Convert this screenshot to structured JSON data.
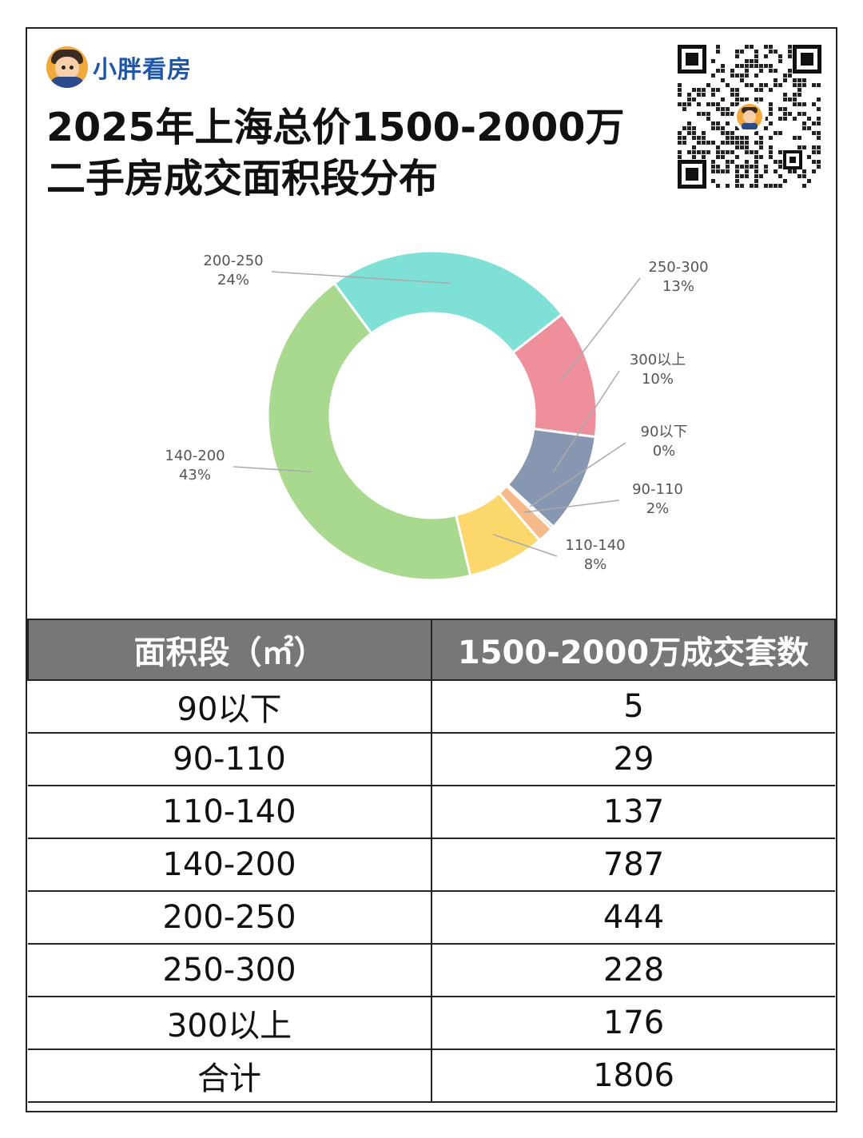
{
  "brand": {
    "name": "小胖看房"
  },
  "title": {
    "line1": "2025年上海总价1500-2000万",
    "line2": "二手房成交面积段分布"
  },
  "chart_data": {
    "type": "pie",
    "donut": true,
    "legend": "none",
    "categories": [
      "90以下",
      "90-110",
      "110-140",
      "140-200",
      "200-250",
      "250-300",
      "300以上"
    ],
    "values": [
      5,
      29,
      137,
      787,
      444,
      228,
      176
    ],
    "percent_labels": [
      "0%",
      "2%",
      "8%",
      "43%",
      "24%",
      "13%",
      "10%"
    ],
    "colors": [
      "#9a9a9a",
      "#f5b98a",
      "#fcd86c",
      "#a9d98f",
      "#7fe0d6",
      "#ee8f9b",
      "#8797b2"
    ]
  },
  "table": {
    "headers": [
      "面积段（㎡）",
      "1500-2000万成交套数"
    ],
    "rows": [
      [
        "90以下",
        "5"
      ],
      [
        "90-110",
        "29"
      ],
      [
        "110-140",
        "137"
      ],
      [
        "140-200",
        "787"
      ],
      [
        "200-250",
        "444"
      ],
      [
        "250-300",
        "228"
      ],
      [
        "300以上",
        "176"
      ],
      [
        "合计",
        "1806"
      ]
    ]
  }
}
